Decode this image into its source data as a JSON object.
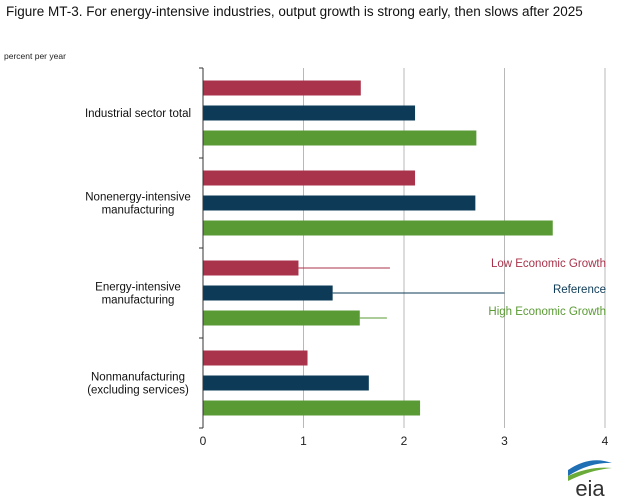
{
  "figure_title": "Figure MT-3. For energy-intensive industries, output growth is strong early, then slows after 2025",
  "unit_label": "percent per year",
  "logo_text": "eia",
  "colors": {
    "low": "#a8334a",
    "reference": "#0d3b57",
    "high": "#5a9a34",
    "grid": "#b8b8b8",
    "axis": "#333333"
  },
  "chart_data": {
    "type": "bar",
    "orientation": "horizontal",
    "categories": [
      "Industrial sector total",
      "Nonenergy-intensive\nmanufacturing",
      "Energy-intensive\nmanufacturing",
      "Nonmanufacturing\n(excluding services)"
    ],
    "series": [
      {
        "name": "Low Economic Growth",
        "color": "#a8334a",
        "values": [
          1.57,
          2.11,
          0.95,
          1.04
        ]
      },
      {
        "name": "Reference",
        "color": "#0d3b57",
        "values": [
          2.11,
          2.71,
          1.29,
          1.65
        ]
      },
      {
        "name": "High Economic Growth",
        "color": "#5a9a34",
        "values": [
          2.72,
          3.48,
          1.56,
          2.16
        ]
      }
    ],
    "xlim": [
      0,
      4
    ],
    "xticks": [
      "0",
      "1",
      "2",
      "3",
      "4"
    ],
    "grid": "vertical",
    "legend": "inline labels beside energy-intensive manufacturing bars, right side"
  }
}
